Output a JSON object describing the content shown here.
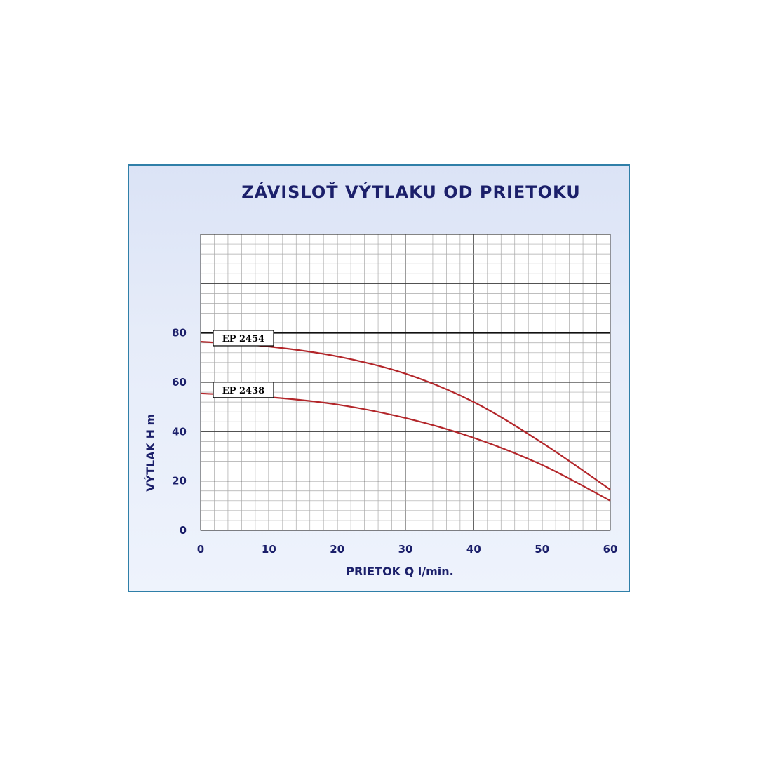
{
  "chart_data": {
    "type": "line",
    "title": "ZÁVISLOŤ  VÝTLAKU  OD  PRIETOKU",
    "xlabel": "PRIETOK  Q  l/min.",
    "ylabel": "VÝTLAK  H  m",
    "xlim": [
      0,
      60
    ],
    "ylim": [
      0,
      120
    ],
    "x_ticks": [
      "0",
      "10",
      "20",
      "30",
      "40",
      "50",
      "60"
    ],
    "y_ticks": [
      "0",
      "20",
      "40",
      "60",
      "80"
    ],
    "grid": true,
    "series": [
      {
        "name": "EP 2454",
        "color": "#b3262a",
        "x": [
          0,
          10,
          20,
          30,
          40,
          50,
          60
        ],
        "y": [
          76.5,
          74.5,
          70.5,
          63.5,
          52,
          35.5,
          16.5
        ]
      },
      {
        "name": "EP 2438",
        "color": "#b3262a",
        "x": [
          0,
          10,
          20,
          30,
          40,
          50,
          60
        ],
        "y": [
          55.5,
          54,
          51,
          45.5,
          37.5,
          26.5,
          12
        ]
      }
    ]
  }
}
